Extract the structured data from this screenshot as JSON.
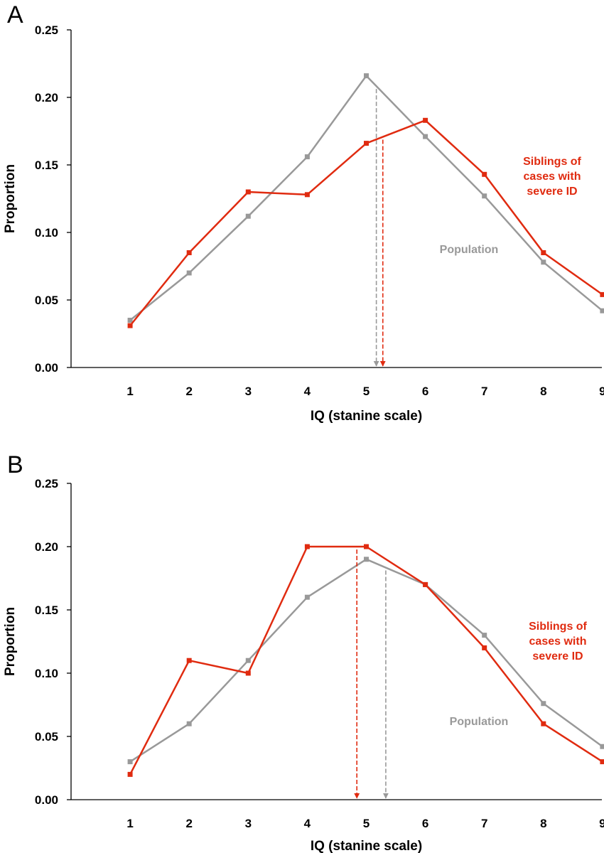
{
  "chart_data": [
    {
      "type": "line",
      "panel": "A",
      "title": "",
      "xlabel": "IQ (stanine scale)",
      "ylabel": "Proportion",
      "x": [
        1,
        2,
        3,
        4,
        5,
        6,
        7,
        8,
        9
      ],
      "xlim": [
        0,
        9
      ],
      "ylim": [
        0,
        0.25
      ],
      "yticks": [
        "0.00",
        "0.05",
        "0.10",
        "0.15",
        "0.20",
        "0.25"
      ],
      "xticks": [
        "1",
        "2",
        "3",
        "4",
        "5",
        "6",
        "7",
        "8",
        "9"
      ],
      "grid": false,
      "series": [
        {
          "name": "Population",
          "label_lines": [
            "Population"
          ],
          "color": "#999999",
          "values": [
            0.035,
            0.07,
            0.112,
            0.156,
            0.216,
            0.171,
            0.127,
            0.078,
            0.042
          ],
          "mean": 5.17
        },
        {
          "name": "Siblings of cases with severe ID",
          "label_lines": [
            "Siblings of",
            "cases with",
            "severe ID"
          ],
          "color": "#e02b10",
          "values": [
            0.031,
            0.085,
            0.13,
            0.128,
            0.166,
            0.183,
            0.143,
            0.085,
            0.054
          ],
          "mean": 5.28
        }
      ]
    },
    {
      "type": "line",
      "panel": "B",
      "title": "",
      "xlabel": "IQ (stanine scale)",
      "ylabel": "Proportion",
      "x": [
        1,
        2,
        3,
        4,
        5,
        6,
        7,
        8,
        9
      ],
      "xlim": [
        0,
        9
      ],
      "ylim": [
        0,
        0.25
      ],
      "yticks": [
        "0.00",
        "0.05",
        "0.10",
        "0.15",
        "0.20",
        "0.25"
      ],
      "xticks": [
        "1",
        "2",
        "3",
        "4",
        "5",
        "6",
        "7",
        "8",
        "9"
      ],
      "grid": false,
      "series": [
        {
          "name": "Population",
          "label_lines": [
            "Population"
          ],
          "color": "#999999",
          "values": [
            0.03,
            0.06,
            0.11,
            0.16,
            0.19,
            0.17,
            0.13,
            0.076,
            0.042
          ],
          "mean": 5.33
        },
        {
          "name": "Siblings of cases with severe ID",
          "label_lines": [
            "Siblings of",
            "cases with",
            "severe ID"
          ],
          "color": "#e02b10",
          "values": [
            0.02,
            0.11,
            0.1,
            0.2,
            0.2,
            0.17,
            0.12,
            0.06,
            0.03
          ],
          "mean": 4.84
        }
      ]
    }
  ]
}
